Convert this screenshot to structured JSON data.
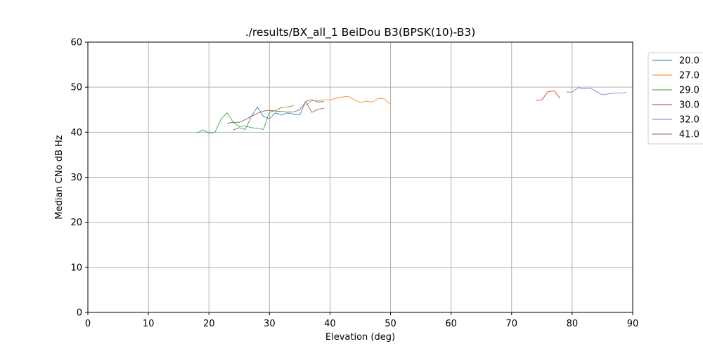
{
  "chart_data": {
    "type": "line",
    "title": "./results/BX_all_1 BeiDou B3(BPSK(10)-B3)",
    "xlabel": "Elevation (deg)",
    "ylabel": "Median CNo dB Hz",
    "xlim": [
      0,
      90
    ],
    "ylim": [
      0,
      60
    ],
    "xticks": [
      "0",
      "10",
      "20",
      "30",
      "40",
      "50",
      "60",
      "70",
      "80",
      "90"
    ],
    "yticks": [
      "0",
      "10",
      "20",
      "30",
      "40",
      "50",
      "60"
    ],
    "grid": true,
    "legend_position": "top-right outside",
    "series": [
      {
        "name": "20.0",
        "color": "#1f77b4",
        "x": [
          24,
          25,
          26,
          27,
          28,
          29,
          30,
          31,
          32,
          33,
          34,
          35,
          36,
          37,
          38,
          39
        ],
        "y": [
          40.5,
          41.0,
          40.6,
          43.5,
          45.6,
          43.5,
          43.0,
          44.3,
          43.8,
          44.3,
          44.0,
          43.8,
          46.9,
          47.2,
          46.7,
          46.8
        ]
      },
      {
        "name": "27.0",
        "color": "#ff7f0e",
        "x": [
          36,
          37,
          38,
          39,
          40,
          41,
          42,
          43,
          44,
          45,
          46,
          47,
          48,
          49,
          50
        ],
        "y": [
          46.0,
          47.0,
          47.0,
          47.2,
          47.2,
          47.5,
          47.8,
          48.0,
          47.2,
          46.6,
          46.9,
          46.7,
          47.5,
          47.4,
          46.2
        ]
      },
      {
        "name": "29.0",
        "color": "#2ca02c",
        "x": [
          18,
          19,
          20,
          21,
          22,
          23,
          24,
          25,
          26,
          27,
          28,
          29,
          30,
          31,
          32,
          33,
          34
        ],
        "y": [
          39.8,
          40.5,
          39.8,
          40.0,
          42.9,
          44.3,
          42.2,
          41.2,
          41.4,
          41.0,
          40.9,
          40.6,
          44.5,
          44.8,
          45.5,
          45.6,
          45.9
        ]
      },
      {
        "name": "30.0",
        "color": "#d62728",
        "x": [
          74,
          75,
          76,
          77,
          78
        ],
        "y": [
          47.0,
          47.2,
          49.0,
          49.2,
          47.5
        ]
      },
      {
        "name": "32.0",
        "color": "#9467bd",
        "x": [
          79,
          80,
          81,
          82,
          83,
          84,
          85,
          86,
          87,
          88,
          89
        ],
        "y": [
          48.9,
          48.9,
          49.9,
          49.6,
          49.8,
          49.0,
          48.3,
          48.5,
          48.7,
          48.7,
          48.8
        ]
      },
      {
        "name": "41.0",
        "color": "#8c564b",
        "x": [
          23,
          24,
          25,
          26,
          27,
          28,
          29,
          30,
          31,
          32,
          33,
          34,
          35,
          36,
          37,
          38,
          39
        ],
        "y": [
          42.0,
          42.2,
          42.2,
          42.8,
          43.5,
          44.2,
          44.7,
          44.9,
          44.7,
          44.6,
          44.5,
          44.5,
          45.0,
          46.8,
          44.4,
          45.1,
          45.3
        ]
      }
    ]
  }
}
